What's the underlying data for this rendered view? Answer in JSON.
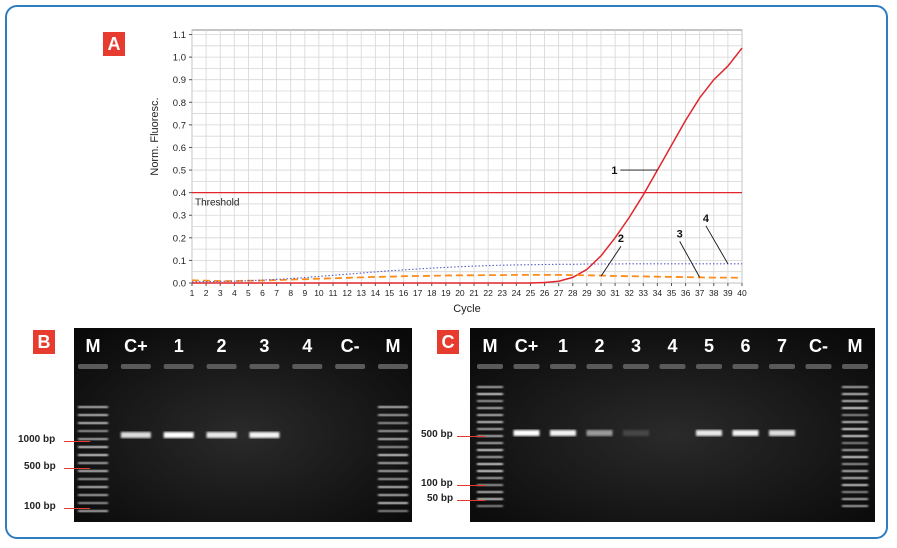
{
  "panels": {
    "a_label": "A",
    "b_label": "B",
    "c_label": "C"
  },
  "colors": {
    "frame": "#2f7dc1",
    "badge": "#e63b2e",
    "curve1": "#e0262c",
    "curve2": "#ff8c1a",
    "curve4": "#5a5fc8",
    "threshold": "#e0262c"
  },
  "chart_data": {
    "type": "line",
    "xlabel": "Cycle",
    "ylabel": "Norm. Fluoresc.",
    "xlim": [
      1,
      40
    ],
    "ylim": [
      0,
      1.12
    ],
    "xticks": [
      1,
      2,
      3,
      4,
      5,
      6,
      7,
      8,
      9,
      10,
      11,
      12,
      13,
      14,
      15,
      16,
      17,
      18,
      19,
      20,
      21,
      22,
      23,
      24,
      25,
      26,
      27,
      28,
      29,
      30,
      31,
      32,
      33,
      34,
      35,
      36,
      37,
      38,
      39,
      40
    ],
    "yticks": [
      "0.0",
      "0.1",
      "0.2",
      "0.3",
      "0.4",
      "0.5",
      "0.6",
      "0.7",
      "0.8",
      "0.9",
      "1.0",
      "1.1"
    ],
    "grid": true,
    "threshold": {
      "value": 0.4,
      "label": "Threshold"
    },
    "x": [
      1,
      2,
      3,
      4,
      5,
      6,
      7,
      8,
      9,
      10,
      11,
      12,
      13,
      14,
      15,
      16,
      17,
      18,
      19,
      20,
      21,
      22,
      23,
      24,
      25,
      26,
      27,
      28,
      29,
      30,
      31,
      32,
      33,
      34,
      35,
      36,
      37,
      38,
      39,
      40
    ],
    "series": [
      {
        "name": "",
        "style": "solid",
        "values": [
          0,
          0,
          0,
          0,
          0,
          0,
          0,
          0,
          0,
          0,
          0,
          0,
          0,
          0,
          0,
          0,
          0,
          0,
          0,
          0,
          0,
          0,
          0,
          0,
          0,
          0.002,
          0.008,
          0.025,
          0.06,
          0.12,
          0.2,
          0.29,
          0.39,
          0.5,
          0.61,
          0.72,
          0.82,
          0.9,
          0.96,
          1.04
        ]
      },
      {
        "name": "",
        "style": "dashed",
        "values": [
          0.012,
          0.01,
          0.009,
          0.009,
          0.01,
          0.011,
          0.013,
          0.015,
          0.017,
          0.019,
          0.021,
          0.023,
          0.025,
          0.027,
          0.028,
          0.03,
          0.031,
          0.032,
          0.033,
          0.034,
          0.034,
          0.035,
          0.035,
          0.036,
          0.036,
          0.036,
          0.036,
          0.035,
          0.034,
          0.033,
          0.031,
          0.03,
          0.029,
          0.028,
          0.027,
          0.026,
          0.025,
          0.024,
          0.024,
          0.023
        ]
      },
      {
        "name": "",
        "style": "dotted",
        "values": [
          0.005,
          0.006,
          0.007,
          0.008,
          0.01,
          0.013,
          0.016,
          0.02,
          0.024,
          0.029,
          0.034,
          0.039,
          0.044,
          0.049,
          0.054,
          0.058,
          0.062,
          0.066,
          0.069,
          0.072,
          0.075,
          0.077,
          0.079,
          0.08,
          0.081,
          0.082,
          0.083,
          0.083,
          0.084,
          0.084,
          0.084,
          0.085,
          0.085,
          0.085,
          0.085,
          0.085,
          0.085,
          0.085,
          0.085,
          0.085
        ]
      }
    ],
    "annotations": [
      {
        "text": "1",
        "x": 34,
        "y": 0.5
      },
      {
        "text": "2",
        "x": 30,
        "y": 0.03
      },
      {
        "text": "3",
        "x": 37,
        "y": 0.025
      },
      {
        "text": "4",
        "x": 39,
        "y": 0.085
      }
    ]
  },
  "gel_b": {
    "lanes": [
      "M",
      "C+",
      "1",
      "2",
      "3",
      "4",
      "C-",
      "M"
    ],
    "markers": [
      "1000 bp",
      "500 bp",
      "100 bp"
    ],
    "band_intensity": [
      0,
      0.85,
      1.0,
      0.9,
      0.95,
      0,
      0,
      0
    ]
  },
  "gel_c": {
    "lanes": [
      "M",
      "C+",
      "1",
      "2",
      "3",
      "4",
      "5",
      "6",
      "7",
      "C-",
      "M"
    ],
    "markers": [
      "500 bp",
      "100 bp",
      "50 bp"
    ],
    "band_intensity": [
      0,
      1.0,
      0.95,
      0.55,
      0.15,
      0,
      0.9,
      0.95,
      0.85,
      0,
      0
    ]
  }
}
